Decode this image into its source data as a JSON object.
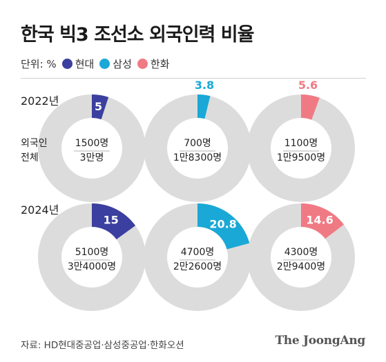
{
  "title": "한국 빅3 조선소 외국인력 비율",
  "unit_label": "단위: %",
  "legend": [
    {
      "name": "현대",
      "color": "#3b3f9f"
    },
    {
      "name": "삼성",
      "color": "#1aa8d6"
    },
    {
      "name": "한화",
      "color": "#f07a84"
    }
  ],
  "row_labels": {
    "foreign": "외국인",
    "total": "전체"
  },
  "source": "자료: HD현대중공업·삼성중공업·한화오션",
  "credit": "The JoongAng",
  "chart_data": {
    "type": "pie",
    "variant": "donut",
    "years": [
      "2022년",
      "2024년"
    ],
    "companies": [
      "현대",
      "삼성",
      "한화"
    ],
    "series": [
      {
        "name": "현대",
        "color": "#3b3f9f",
        "values": [
          5,
          15
        ],
        "foreign": [
          "1500명",
          "5100명"
        ],
        "total": [
          "3만명",
          "3만4000명"
        ]
      },
      {
        "name": "삼성",
        "color": "#1aa8d6",
        "values": [
          3.8,
          20.8
        ],
        "foreign": [
          "700명",
          "4700명"
        ],
        "total": [
          "1만8300명",
          "2만2600명"
        ]
      },
      {
        "name": "한화",
        "color": "#f07a84",
        "values": [
          5.6,
          14.6
        ],
        "foreign": [
          "1100명",
          "4300명"
        ],
        "total": [
          "1만9500명",
          "2만9400명"
        ]
      }
    ],
    "track_color": "#dcdcdc"
  }
}
